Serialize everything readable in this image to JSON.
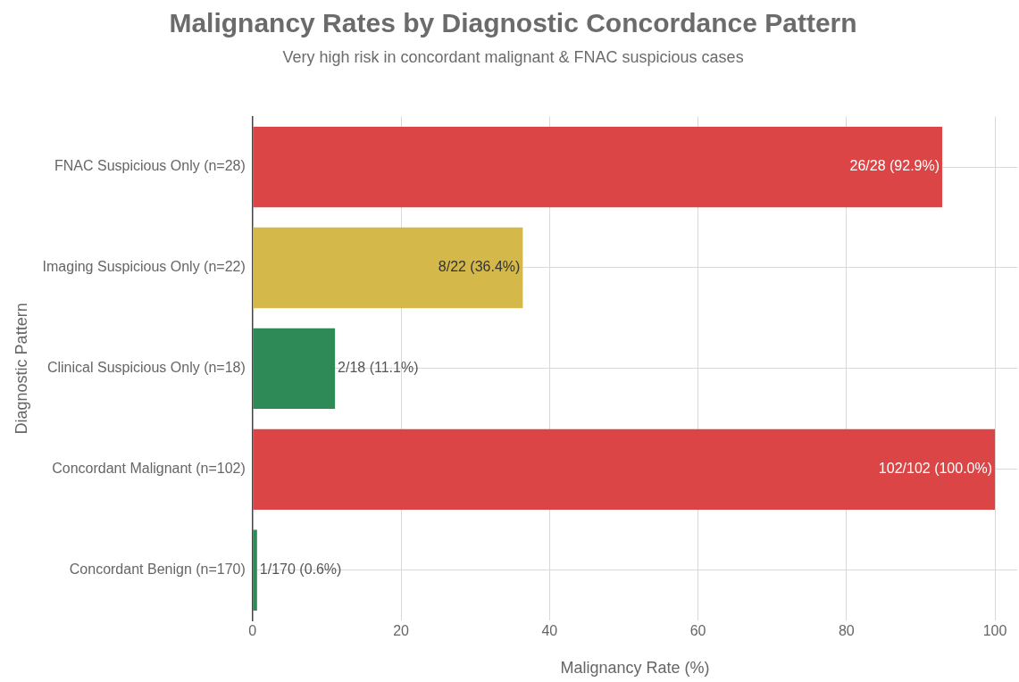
{
  "chart_data": {
    "type": "bar",
    "orientation": "horizontal",
    "title": "Malignancy Rates by Diagnostic Concordance Pattern",
    "subtitle": "Very high risk in concordant malignant & FNAC suspicious cases",
    "xlabel": "Malignancy Rate (%)",
    "ylabel": "Diagnostic Pattern",
    "categories": [
      "FNAC Suspicious Only (n=28)",
      "Imaging Suspicious Only (n=22)",
      "Clinical Suspicious Only (n=18)",
      "Concordant Malignant (n=102)",
      "Concordant Benign (n=170)"
    ],
    "values": [
      92.9,
      36.4,
      11.1,
      100.0,
      0.6
    ],
    "colors": [
      "#db4545",
      "#d4b94a",
      "#2e8b57",
      "#db4545",
      "#2e8b57"
    ],
    "value_labels": [
      "26/28 (92.9%)",
      "8/22 (36.4%)",
      "2/18 (11.1%)",
      "102/102 (100.0%)",
      "1/170 (0.6%)"
    ],
    "xlim": [
      0,
      103
    ],
    "xticks": [
      0,
      20,
      40,
      60,
      80,
      100
    ],
    "grid": true,
    "legend": false
  }
}
